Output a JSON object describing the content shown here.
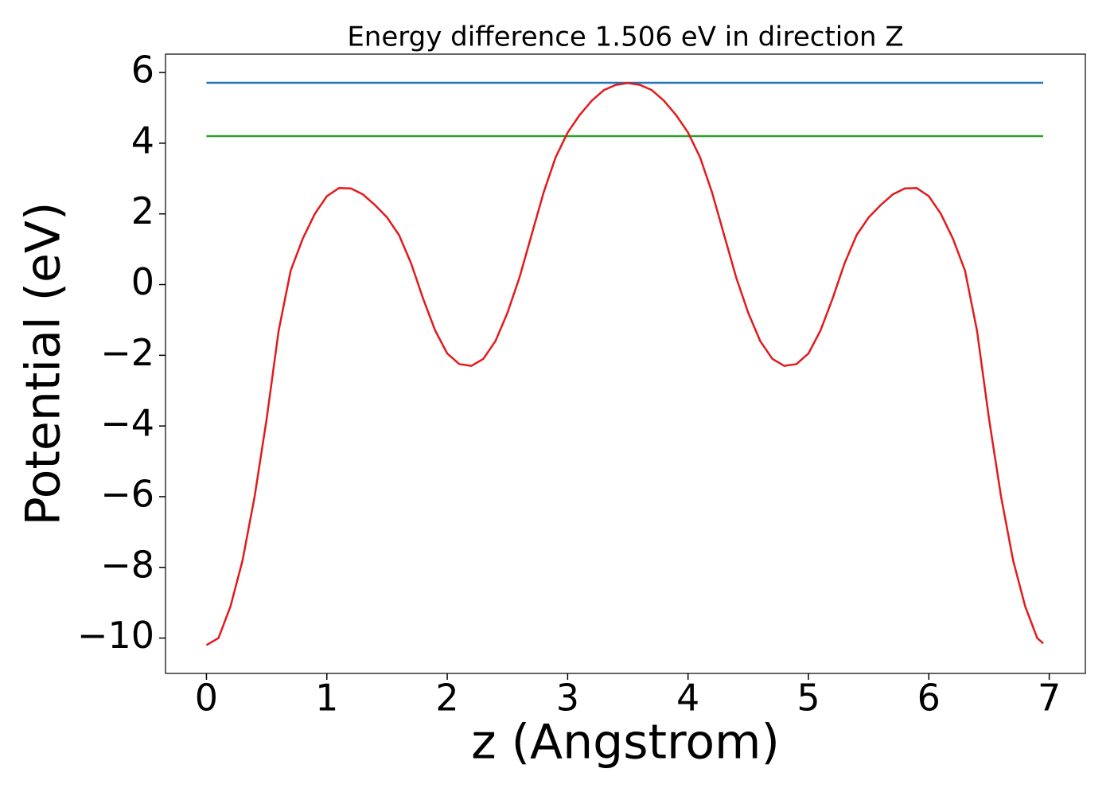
{
  "chart_data": {
    "type": "line",
    "title": "Energy difference 1.506 eV in direction Z",
    "xlabel": "z (Angstrom)",
    "ylabel": "Potential (eV)",
    "xlim": [
      -0.34,
      7.3
    ],
    "ylim": [
      -11,
      6.52
    ],
    "xticks": [
      0,
      1,
      2,
      3,
      4,
      5,
      6,
      7
    ],
    "yticks": [
      {
        "value": -10,
        "label": "−10"
      },
      {
        "value": -8,
        "label": "−8"
      },
      {
        "value": -6,
        "label": "−6"
      },
      {
        "value": -4,
        "label": "−4"
      },
      {
        "value": -2,
        "label": "−2"
      },
      0,
      2,
      4,
      6
    ],
    "grid": false,
    "series": [
      {
        "color": "#1f77b4",
        "x": [
          0,
          6.95
        ],
        "values": [
          5.71,
          5.71
        ]
      },
      {
        "color": "#2ca02c",
        "x": [
          0,
          6.95
        ],
        "values": [
          4.2,
          4.2
        ]
      },
      {
        "color": "#e31a1c",
        "x": [
          0,
          0.1,
          0.2,
          0.3,
          0.4,
          0.5,
          0.6,
          0.7,
          0.8,
          0.9,
          1.0,
          1.1,
          1.2,
          1.3,
          1.4,
          1.5,
          1.6,
          1.7,
          1.8,
          1.9,
          2.0,
          2.1,
          2.2,
          2.3,
          2.4,
          2.5,
          2.6,
          2.7,
          2.8,
          2.9,
          3.0,
          3.1,
          3.2,
          3.3,
          3.4,
          3.5,
          3.6,
          3.7,
          3.8,
          3.9,
          4.0,
          4.1,
          4.2,
          4.3,
          4.4,
          4.5,
          4.6,
          4.7,
          4.8,
          4.9,
          5.0,
          5.1,
          5.2,
          5.3,
          5.4,
          5.5,
          5.6,
          5.7,
          5.8,
          5.9,
          6.0,
          6.1,
          6.2,
          6.3,
          6.4,
          6.5,
          6.6,
          6.7,
          6.8,
          6.9,
          6.95
        ],
        "values": [
          -10.2,
          -10.0,
          -9.1,
          -7.8,
          -6.0,
          -3.8,
          -1.3,
          0.4,
          1.3,
          2.0,
          2.5,
          2.73,
          2.72,
          2.55,
          2.25,
          1.9,
          1.4,
          0.6,
          -0.4,
          -1.3,
          -1.95,
          -2.25,
          -2.3,
          -2.1,
          -1.6,
          -0.8,
          0.2,
          1.4,
          2.6,
          3.6,
          4.3,
          4.8,
          5.2,
          5.5,
          5.65,
          5.7,
          5.65,
          5.5,
          5.2,
          4.8,
          4.3,
          3.6,
          2.6,
          1.4,
          0.2,
          -0.8,
          -1.6,
          -2.1,
          -2.3,
          -2.25,
          -1.95,
          -1.3,
          -0.4,
          0.6,
          1.4,
          1.9,
          2.25,
          2.55,
          2.72,
          2.73,
          2.5,
          2.0,
          1.3,
          0.4,
          -1.3,
          -3.8,
          -6.0,
          -7.8,
          -9.1,
          -10.0,
          -10.15
        ]
      }
    ]
  }
}
